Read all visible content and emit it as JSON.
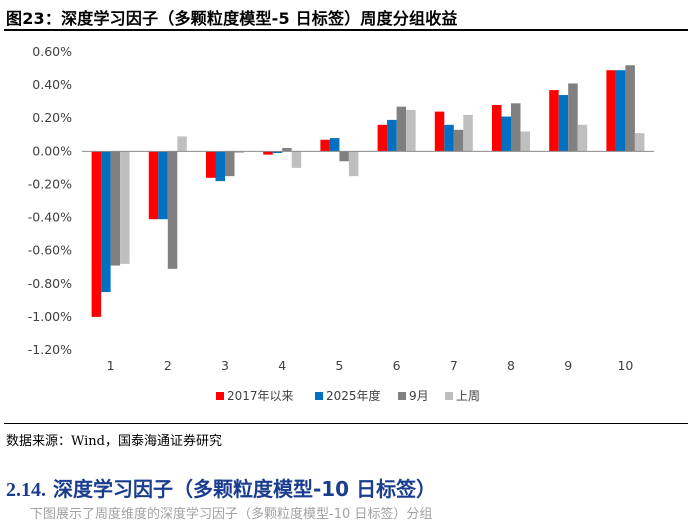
{
  "figure_title": "图23：深度学习因子（多颗粒度模型-5 日标签）周度分组收益",
  "source": "数据来源：Wind，国泰海通证券研究",
  "section": {
    "number": "2.14.",
    "title": "深度学习因子（多颗粒度模型-10 日标签）"
  },
  "body_snippet": "下图展示了周度维度的深度学习因子（多颗粒度模型-10 日标签）分组",
  "chart_data": {
    "type": "bar",
    "categories": [
      "1",
      "2",
      "3",
      "4",
      "5",
      "6",
      "7",
      "8",
      "9",
      "10"
    ],
    "ylim": [
      -1.2,
      0.6
    ],
    "yticks": [
      0.6,
      0.4,
      0.2,
      0.0,
      -0.2,
      -0.4,
      -0.6,
      -0.8,
      -1.0,
      -1.2
    ],
    "ytick_labels": [
      "0.60%",
      "0.40%",
      "0.20%",
      "0.00%",
      "-0.20%",
      "-0.40%",
      "-0.60%",
      "-0.80%",
      "-1.00%",
      "-1.20%"
    ],
    "y_unit": "%",
    "grid": false,
    "legend_position": "bottom",
    "series": [
      {
        "name": "2017年以来",
        "color": "#ff0000",
        "values": [
          -1.0,
          -0.41,
          -0.16,
          -0.02,
          0.07,
          0.16,
          0.24,
          0.28,
          0.37,
          0.49
        ]
      },
      {
        "name": "2025年度",
        "color": "#0070c0",
        "values": [
          -0.85,
          -0.41,
          -0.18,
          -0.01,
          0.08,
          0.19,
          0.16,
          0.21,
          0.34,
          0.49
        ]
      },
      {
        "name": "9月",
        "color": "#808080",
        "values": [
          -0.69,
          -0.71,
          -0.15,
          0.02,
          -0.06,
          0.27,
          0.13,
          0.29,
          0.41,
          0.52
        ]
      },
      {
        "name": "上周",
        "color": "#bfbfbf",
        "values": [
          -0.68,
          0.09,
          -0.01,
          -0.1,
          -0.15,
          0.25,
          0.22,
          0.12,
          0.16,
          0.11
        ]
      }
    ]
  }
}
